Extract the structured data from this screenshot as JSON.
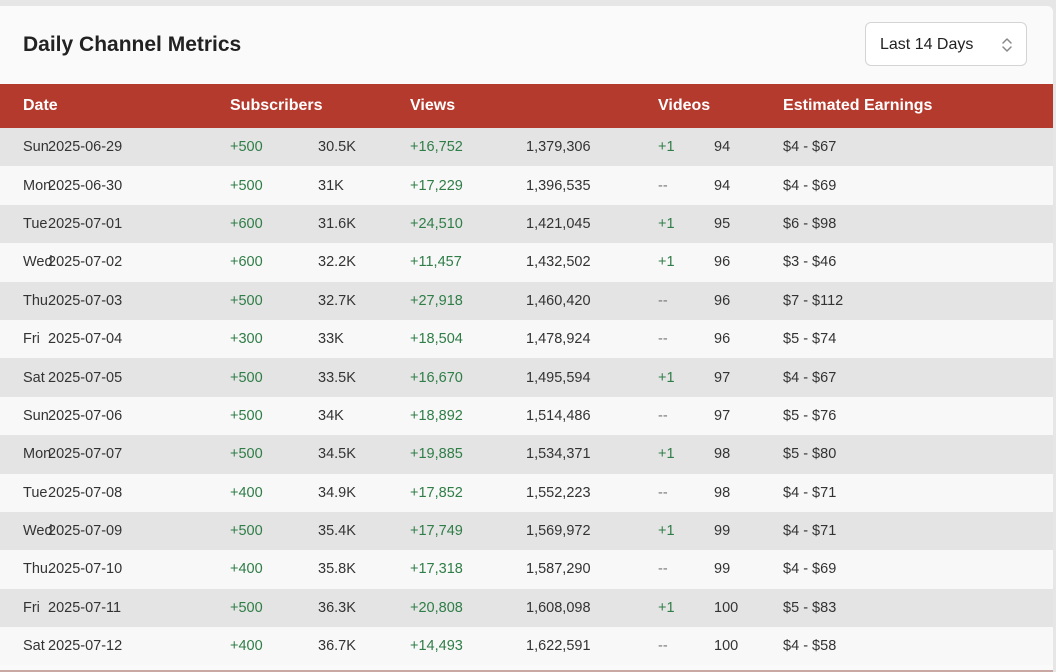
{
  "panel": {
    "title": "Daily Channel Metrics",
    "range_select": {
      "value": "Last 14 Days",
      "icon": "updown-chevron-icon"
    }
  },
  "colors": {
    "header_bg": "#b53a2e",
    "positive": "#2f7d47",
    "row_odd": "#e4e4e4",
    "row_even": "#f8f8f8"
  },
  "table": {
    "headers": {
      "date": "Date",
      "subscribers": "Subscribers",
      "views": "Views",
      "videos": "Videos",
      "earnings": "Estimated Earnings"
    },
    "rows": [
      {
        "day": "Sun",
        "date": "2025-06-29",
        "subs_delta": "+500",
        "subs_total": "30.5K",
        "views_delta": "+16,752",
        "views_total": "1,379,306",
        "videos_delta": "+1",
        "videos_total": "94",
        "earnings": "$4 - $67"
      },
      {
        "day": "Mon",
        "date": "2025-06-30",
        "subs_delta": "+500",
        "subs_total": "31K",
        "views_delta": "+17,229",
        "views_total": "1,396,535",
        "videos_delta": "--",
        "videos_total": "94",
        "earnings": "$4 - $69"
      },
      {
        "day": "Tue",
        "date": "2025-07-01",
        "subs_delta": "+600",
        "subs_total": "31.6K",
        "views_delta": "+24,510",
        "views_total": "1,421,045",
        "videos_delta": "+1",
        "videos_total": "95",
        "earnings": "$6 - $98"
      },
      {
        "day": "Wed",
        "date": "2025-07-02",
        "subs_delta": "+600",
        "subs_total": "32.2K",
        "views_delta": "+11,457",
        "views_total": "1,432,502",
        "videos_delta": "+1",
        "videos_total": "96",
        "earnings": "$3 - $46"
      },
      {
        "day": "Thu",
        "date": "2025-07-03",
        "subs_delta": "+500",
        "subs_total": "32.7K",
        "views_delta": "+27,918",
        "views_total": "1,460,420",
        "videos_delta": "--",
        "videos_total": "96",
        "earnings": "$7 - $112"
      },
      {
        "day": "Fri",
        "date": "2025-07-04",
        "subs_delta": "+300",
        "subs_total": "33K",
        "views_delta": "+18,504",
        "views_total": "1,478,924",
        "videos_delta": "--",
        "videos_total": "96",
        "earnings": "$5 - $74"
      },
      {
        "day": "Sat",
        "date": "2025-07-05",
        "subs_delta": "+500",
        "subs_total": "33.5K",
        "views_delta": "+16,670",
        "views_total": "1,495,594",
        "videos_delta": "+1",
        "videos_total": "97",
        "earnings": "$4 - $67"
      },
      {
        "day": "Sun",
        "date": "2025-07-06",
        "subs_delta": "+500",
        "subs_total": "34K",
        "views_delta": "+18,892",
        "views_total": "1,514,486",
        "videos_delta": "--",
        "videos_total": "97",
        "earnings": "$5 - $76"
      },
      {
        "day": "Mon",
        "date": "2025-07-07",
        "subs_delta": "+500",
        "subs_total": "34.5K",
        "views_delta": "+19,885",
        "views_total": "1,534,371",
        "videos_delta": "+1",
        "videos_total": "98",
        "earnings": "$5 - $80"
      },
      {
        "day": "Tue",
        "date": "2025-07-08",
        "subs_delta": "+400",
        "subs_total": "34.9K",
        "views_delta": "+17,852",
        "views_total": "1,552,223",
        "videos_delta": "--",
        "videos_total": "98",
        "earnings": "$4 - $71"
      },
      {
        "day": "Wed",
        "date": "2025-07-09",
        "subs_delta": "+500",
        "subs_total": "35.4K",
        "views_delta": "+17,749",
        "views_total": "1,569,972",
        "videos_delta": "+1",
        "videos_total": "99",
        "earnings": "$4 - $71"
      },
      {
        "day": "Thu",
        "date": "2025-07-10",
        "subs_delta": "+400",
        "subs_total": "35.8K",
        "views_delta": "+17,318",
        "views_total": "1,587,290",
        "videos_delta": "--",
        "videos_total": "99",
        "earnings": "$4 - $69"
      },
      {
        "day": "Fri",
        "date": "2025-07-11",
        "subs_delta": "+500",
        "subs_total": "36.3K",
        "views_delta": "+20,808",
        "views_total": "1,608,098",
        "videos_delta": "+1",
        "videos_total": "100",
        "earnings": "$5 - $83"
      },
      {
        "day": "Sat",
        "date": "2025-07-12",
        "subs_delta": "+400",
        "subs_total": "36.7K",
        "views_delta": "+14,493",
        "views_total": "1,622,591",
        "videos_delta": "--",
        "videos_total": "100",
        "earnings": "$4 - $58"
      }
    ]
  }
}
